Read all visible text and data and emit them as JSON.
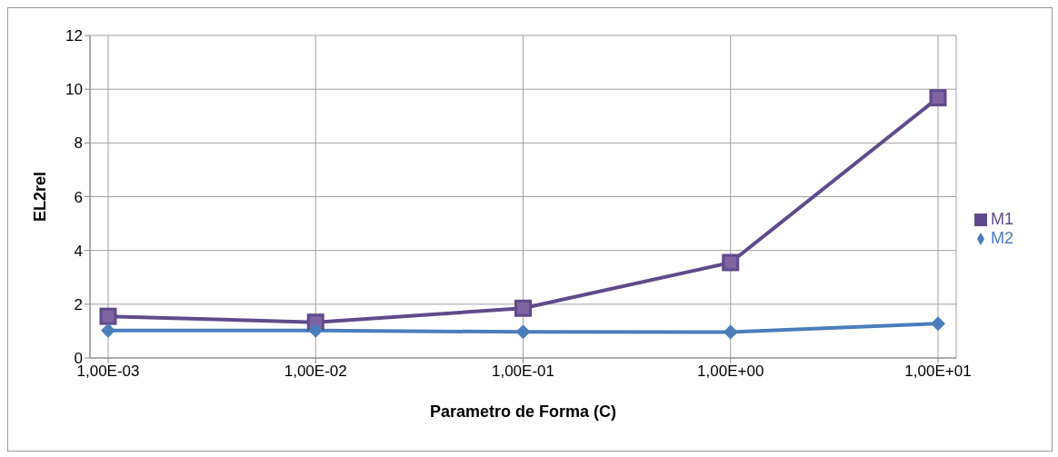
{
  "chart_data": {
    "type": "line",
    "xlabel": "Parametro de Forma (C)",
    "ylabel": "EL2rel",
    "categories": [
      "1,00E-03",
      "1,00E-02",
      "1,00E-01",
      "1,00E+00",
      "1,00E+01"
    ],
    "series": [
      {
        "name": "M1",
        "color": "#5f4b8b",
        "marker": "square",
        "values": [
          1.55,
          1.33,
          1.85,
          3.55,
          9.68
        ]
      },
      {
        "name": "M2",
        "color": "#4a7ebb",
        "marker": "diamond",
        "values": [
          1.02,
          1.02,
          0.97,
          0.96,
          1.28
        ]
      }
    ],
    "ylim": [
      0,
      12
    ],
    "yticks": [
      0,
      2,
      4,
      6,
      8,
      10,
      12
    ],
    "grid": true,
    "legend": "right"
  }
}
